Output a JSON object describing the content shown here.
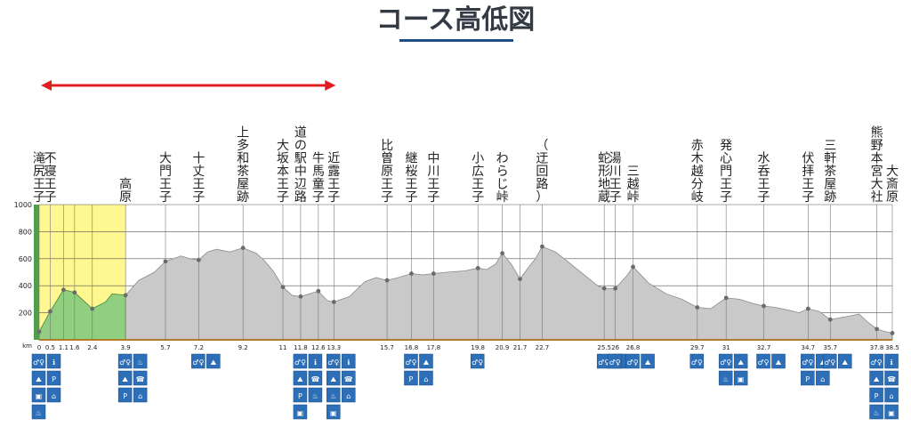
{
  "title": "コース高低図",
  "colors": {
    "title_underline": "#1f4e8c",
    "arrow": "#e02020",
    "elevation_fill": "#c9c9c9",
    "highlight_yellow": "#fff78f",
    "highlight_green": "#8fcf7f",
    "marker": "#6b6b6b"
  },
  "chart_data": {
    "type": "area",
    "title": "コース高低図",
    "xlabel": "",
    "ylabel": "",
    "x_unit": "km",
    "ylim": [
      0,
      1000
    ],
    "xlim": [
      0,
      38.5
    ],
    "y_ticks": [
      200,
      400,
      600,
      800,
      1000
    ],
    "grid": true,
    "elevation_profile": [
      [
        0.0,
        60
      ],
      [
        0.5,
        210
      ],
      [
        1.1,
        370
      ],
      [
        1.6,
        350
      ],
      [
        2.0,
        290
      ],
      [
        2.4,
        230
      ],
      [
        3.0,
        280
      ],
      [
        3.3,
        340
      ],
      [
        3.9,
        330
      ],
      [
        4.5,
        440
      ],
      [
        5.2,
        500
      ],
      [
        5.7,
        580
      ],
      [
        6.4,
        620
      ],
      [
        6.8,
        600
      ],
      [
        7.2,
        590
      ],
      [
        7.6,
        650
      ],
      [
        8.0,
        670
      ],
      [
        8.6,
        650
      ],
      [
        9.2,
        680
      ],
      [
        9.8,
        640
      ],
      [
        10.2,
        580
      ],
      [
        10.6,
        500
      ],
      [
        11.0,
        390
      ],
      [
        11.4,
        330
      ],
      [
        11.8,
        320
      ],
      [
        12.2,
        340
      ],
      [
        12.6,
        360
      ],
      [
        13.0,
        290
      ],
      [
        13.3,
        280
      ],
      [
        14.0,
        320
      ],
      [
        14.7,
        430
      ],
      [
        15.2,
        460
      ],
      [
        15.7,
        440
      ],
      [
        16.2,
        460
      ],
      [
        16.8,
        490
      ],
      [
        17.3,
        480
      ],
      [
        17.8,
        490
      ],
      [
        18.4,
        500
      ],
      [
        19.2,
        510
      ],
      [
        19.8,
        530
      ],
      [
        20.2,
        520
      ],
      [
        20.6,
        560
      ],
      [
        20.9,
        640
      ],
      [
        21.3,
        560
      ],
      [
        21.7,
        450
      ],
      [
        22.1,
        540
      ],
      [
        22.4,
        600
      ],
      [
        22.7,
        690
      ],
      [
        23.3,
        650
      ],
      [
        24.0,
        560
      ],
      [
        24.6,
        480
      ],
      [
        25.2,
        400
      ],
      [
        25.5,
        380
      ],
      [
        26.0,
        380
      ],
      [
        26.5,
        470
      ],
      [
        26.8,
        540
      ],
      [
        27.5,
        420
      ],
      [
        28.3,
        340
      ],
      [
        29.0,
        300
      ],
      [
        29.7,
        240
      ],
      [
        30.3,
        230
      ],
      [
        31.0,
        310
      ],
      [
        31.6,
        300
      ],
      [
        32.2,
        270
      ],
      [
        32.7,
        250
      ],
      [
        33.2,
        240
      ],
      [
        33.8,
        220
      ],
      [
        34.3,
        200
      ],
      [
        34.7,
        230
      ],
      [
        35.2,
        210
      ],
      [
        35.7,
        150
      ],
      [
        36.4,
        170
      ],
      [
        37.0,
        190
      ],
      [
        37.4,
        130
      ],
      [
        37.8,
        80
      ],
      [
        38.2,
        60
      ],
      [
        38.5,
        50
      ]
    ],
    "highlight_range_km": [
      0,
      3.9
    ],
    "arrow_range_km": [
      0,
      13.3
    ],
    "landmarks": [
      {
        "name": "滝尻王子",
        "km": 0,
        "km_label": "0",
        "marked": true
      },
      {
        "name": "不寝王子",
        "km": 0.5,
        "km_label": "0.5",
        "marked": true
      },
      {
        "name": "",
        "km": 1.1,
        "km_label": "1.1",
        "marked": true
      },
      {
        "name": "",
        "km": 1.6,
        "km_label": "1.6",
        "marked": true
      },
      {
        "name": "",
        "km": 2.4,
        "km_label": "2.4",
        "marked": true
      },
      {
        "name": "高原",
        "km": 3.9,
        "km_label": "3.9",
        "marked": true
      },
      {
        "name": "大門王子",
        "km": 5.7,
        "km_label": "5.7",
        "marked": true
      },
      {
        "name": "十丈王子",
        "km": 7.2,
        "km_label": "7.2",
        "marked": true
      },
      {
        "name": "上多和茶屋跡",
        "km": 9.2,
        "km_label": "9.2",
        "marked": true
      },
      {
        "name": "大坂本王子",
        "km": 11,
        "km_label": "11",
        "marked": true
      },
      {
        "name": "道の駅中辺路",
        "km": 11.8,
        "km_label": "11.8",
        "marked": true
      },
      {
        "name": "牛馬童子",
        "km": 12.6,
        "km_label": "12.6",
        "marked": true
      },
      {
        "name": "近露王子",
        "km": 13.3,
        "km_label": "13.3",
        "marked": true
      },
      {
        "name": "比曽原王子",
        "km": 15.7,
        "km_label": "15.7",
        "marked": true
      },
      {
        "name": "継桜王子",
        "km": 16.8,
        "km_label": "16.8",
        "marked": true
      },
      {
        "name": "中川王子",
        "km": 17.8,
        "km_label": "17.8",
        "marked": true
      },
      {
        "name": "小広王子",
        "km": 19.8,
        "km_label": "19.8",
        "marked": true
      },
      {
        "name": "わらじ峠",
        "km": 20.9,
        "km_label": "20.9",
        "marked": true
      },
      {
        "name": "",
        "km": 21.7,
        "km_label": "21.7",
        "marked": true
      },
      {
        "name": "（迂回路）",
        "km": 22.7,
        "km_label": "22.7",
        "marked": true
      },
      {
        "name": "蛇形地蔵",
        "km": 25.5,
        "km_label": "25.5",
        "marked": true
      },
      {
        "name": "湯川王子",
        "km": 26,
        "km_label": "26",
        "marked": true
      },
      {
        "name": "三越峠",
        "km": 26.8,
        "km_label": "26.8",
        "marked": true
      },
      {
        "name": "赤木越分岐",
        "km": 29.7,
        "km_label": "29.7",
        "marked": true
      },
      {
        "name": "発心門王子",
        "km": 31,
        "km_label": "31",
        "marked": true
      },
      {
        "name": "水呑王子",
        "km": 32.7,
        "km_label": "32.7",
        "marked": true
      },
      {
        "name": "伏拝王子",
        "km": 34.7,
        "km_label": "34.7",
        "marked": true
      },
      {
        "name": "三軒茶屋跡",
        "km": 35.7,
        "km_label": "35.7",
        "marked": true
      },
      {
        "name": "熊野本宮大社",
        "km": 37.8,
        "km_label": "37.8",
        "marked": true
      },
      {
        "name": "大斎原",
        "km": 38.5,
        "km_label": "38.5",
        "marked": true
      }
    ],
    "facility_icons": [
      {
        "km": 0,
        "icons": [
          "toilet-icon",
          "information-icon",
          "trail-icon",
          "parking-icon",
          "vending-icon",
          "shelter-icon",
          "restaurant-icon"
        ]
      },
      {
        "km": 3.9,
        "icons": [
          "toilet-icon",
          "restaurant-icon",
          "trail-icon",
          "phone-icon",
          "parking-icon",
          "shelter-icon"
        ]
      },
      {
        "km": 7.2,
        "icons": [
          "toilet-icon",
          "trail-icon"
        ]
      },
      {
        "km": 11.8,
        "icons": [
          "toilet-icon",
          "information-icon",
          "trail-icon",
          "phone-icon",
          "parking-icon",
          "restaurant-icon",
          "vending-icon"
        ]
      },
      {
        "km": 13.3,
        "icons": [
          "toilet-icon",
          "information-icon",
          "trail-icon",
          "phone-icon",
          "restaurant-icon",
          "shelter-icon",
          "vending-icon"
        ]
      },
      {
        "km": 16.8,
        "icons": [
          "toilet-icon",
          "trail-icon",
          "parking-icon",
          "shelter-icon"
        ]
      },
      {
        "km": 19.8,
        "icons": [
          "toilet-icon"
        ]
      },
      {
        "km": 25.5,
        "icons": [
          "toilet-icon",
          "trail-icon"
        ]
      },
      {
        "km": 26,
        "icons": [
          "toilet-icon"
        ]
      },
      {
        "km": 26.8,
        "icons": [
          "toilet-icon",
          "trail-icon"
        ]
      },
      {
        "km": 29.7,
        "icons": [
          "toilet-icon"
        ]
      },
      {
        "km": 31,
        "icons": [
          "toilet-icon",
          "trail-icon",
          "restaurant-icon",
          "vending-icon"
        ]
      },
      {
        "km": 32.7,
        "icons": [
          "toilet-icon",
          "trail-icon"
        ]
      },
      {
        "km": 34.7,
        "icons": [
          "toilet-icon",
          "trail-icon",
          "parking-icon",
          "shelter-icon"
        ]
      },
      {
        "km": 35.7,
        "icons": [
          "toilet-icon",
          "trail-icon"
        ]
      },
      {
        "km": 37.8,
        "icons": [
          "toilet-icon",
          "information-icon",
          "trail-icon",
          "phone-icon",
          "parking-icon",
          "shelter-icon",
          "restaurant-icon",
          "vending-icon"
        ]
      }
    ]
  }
}
